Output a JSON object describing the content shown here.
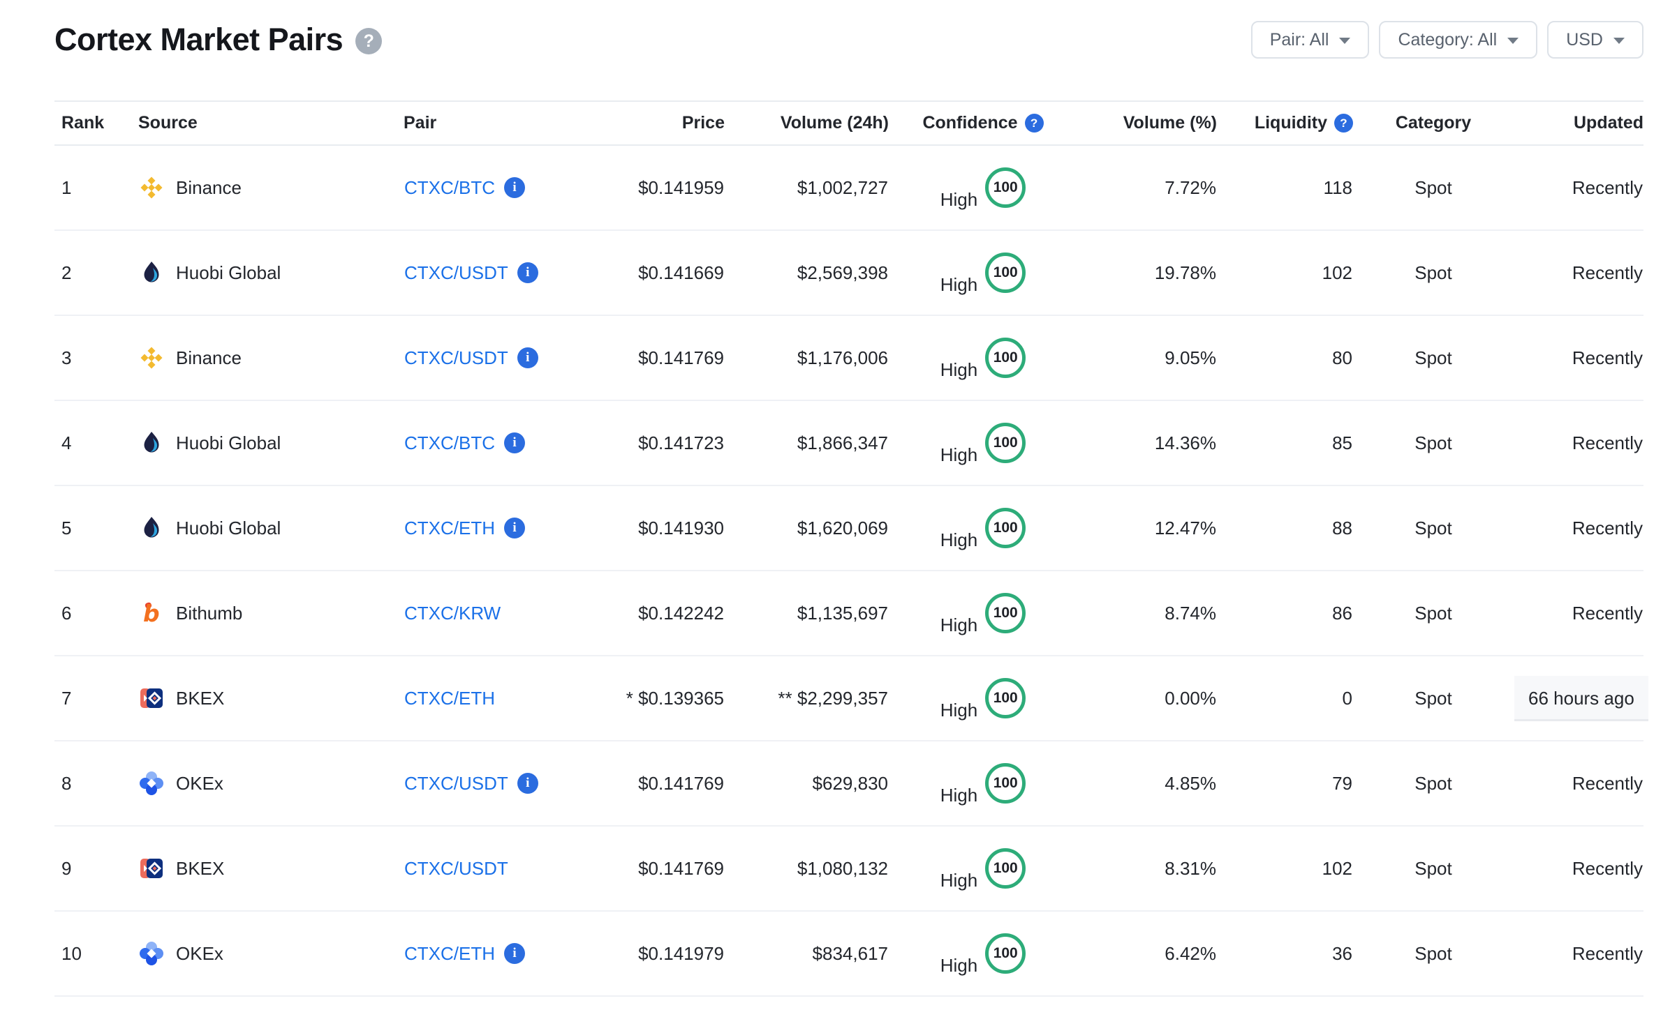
{
  "page": {
    "title": "Cortex Market Pairs",
    "help_icon": "question-mark"
  },
  "filters": {
    "pair": {
      "label": "Pair: All"
    },
    "category": {
      "label": "Category: All"
    },
    "currency": {
      "label": "USD"
    }
  },
  "colors": {
    "link_blue": "#1a70e8",
    "info_icon_blue": "#2b6cdf",
    "confidence_green": "#2dac79",
    "help_icon_gray": "#a5aeb9"
  },
  "table": {
    "columns": {
      "rank": "Rank",
      "source": "Source",
      "pair": "Pair",
      "price": "Price",
      "volume24h": "Volume (24h)",
      "confidence": "Confidence",
      "volumePct": "Volume (%)",
      "liquidity": "Liquidity",
      "category": "Category",
      "updated": "Updated"
    },
    "rows": [
      {
        "rank": "1",
        "source": "Binance",
        "source_icon": "binance-icon",
        "pair": "CTXC/BTC",
        "pair_info": true,
        "price": "$0.141959",
        "volume_24h": "$1,002,727",
        "confidence_label": "High",
        "confidence_score": "100",
        "volume_pct": "7.72%",
        "liquidity": "118",
        "category": "Spot",
        "updated": "Recently",
        "updated_highlighted": false
      },
      {
        "rank": "2",
        "source": "Huobi Global",
        "source_icon": "huobi-icon",
        "pair": "CTXC/USDT",
        "pair_info": true,
        "price": "$0.141669",
        "volume_24h": "$2,569,398",
        "confidence_label": "High",
        "confidence_score": "100",
        "volume_pct": "19.78%",
        "liquidity": "102",
        "category": "Spot",
        "updated": "Recently",
        "updated_highlighted": false
      },
      {
        "rank": "3",
        "source": "Binance",
        "source_icon": "binance-icon",
        "pair": "CTXC/USDT",
        "pair_info": true,
        "price": "$0.141769",
        "volume_24h": "$1,176,006",
        "confidence_label": "High",
        "confidence_score": "100",
        "volume_pct": "9.05%",
        "liquidity": "80",
        "category": "Spot",
        "updated": "Recently",
        "updated_highlighted": false
      },
      {
        "rank": "4",
        "source": "Huobi Global",
        "source_icon": "huobi-icon",
        "pair": "CTXC/BTC",
        "pair_info": true,
        "price": "$0.141723",
        "volume_24h": "$1,866,347",
        "confidence_label": "High",
        "confidence_score": "100",
        "volume_pct": "14.36%",
        "liquidity": "85",
        "category": "Spot",
        "updated": "Recently",
        "updated_highlighted": false
      },
      {
        "rank": "5",
        "source": "Huobi Global",
        "source_icon": "huobi-icon",
        "pair": "CTXC/ETH",
        "pair_info": true,
        "price": "$0.141930",
        "volume_24h": "$1,620,069",
        "confidence_label": "High",
        "confidence_score": "100",
        "volume_pct": "12.47%",
        "liquidity": "88",
        "category": "Spot",
        "updated": "Recently",
        "updated_highlighted": false
      },
      {
        "rank": "6",
        "source": "Bithumb",
        "source_icon": "bithumb-icon",
        "pair": "CTXC/KRW",
        "pair_info": false,
        "price": "$0.142242",
        "volume_24h": "$1,135,697",
        "confidence_label": "High",
        "confidence_score": "100",
        "volume_pct": "8.74%",
        "liquidity": "86",
        "category": "Spot",
        "updated": "Recently",
        "updated_highlighted": false
      },
      {
        "rank": "7",
        "source": "BKEX",
        "source_icon": "bkex-icon",
        "pair": "CTXC/ETH",
        "pair_info": false,
        "price": "* $0.139365",
        "volume_24h": "** $2,299,357",
        "confidence_label": "High",
        "confidence_score": "100",
        "volume_pct": "0.00%",
        "liquidity": "0",
        "category": "Spot",
        "updated": "66 hours ago",
        "updated_highlighted": true
      },
      {
        "rank": "8",
        "source": "OKEx",
        "source_icon": "okex-icon",
        "pair": "CTXC/USDT",
        "pair_info": true,
        "price": "$0.141769",
        "volume_24h": "$629,830",
        "confidence_label": "High",
        "confidence_score": "100",
        "volume_pct": "4.85%",
        "liquidity": "79",
        "category": "Spot",
        "updated": "Recently",
        "updated_highlighted": false
      },
      {
        "rank": "9",
        "source": "BKEX",
        "source_icon": "bkex-icon",
        "pair": "CTXC/USDT",
        "pair_info": false,
        "price": "$0.141769",
        "volume_24h": "$1,080,132",
        "confidence_label": "High",
        "confidence_score": "100",
        "volume_pct": "8.31%",
        "liquidity": "102",
        "category": "Spot",
        "updated": "Recently",
        "updated_highlighted": false
      },
      {
        "rank": "10",
        "source": "OKEx",
        "source_icon": "okex-icon",
        "pair": "CTXC/ETH",
        "pair_info": true,
        "price": "$0.141979",
        "volume_24h": "$834,617",
        "confidence_label": "High",
        "confidence_score": "100",
        "volume_pct": "6.42%",
        "liquidity": "36",
        "category": "Spot",
        "updated": "Recently",
        "updated_highlighted": false
      }
    ]
  }
}
